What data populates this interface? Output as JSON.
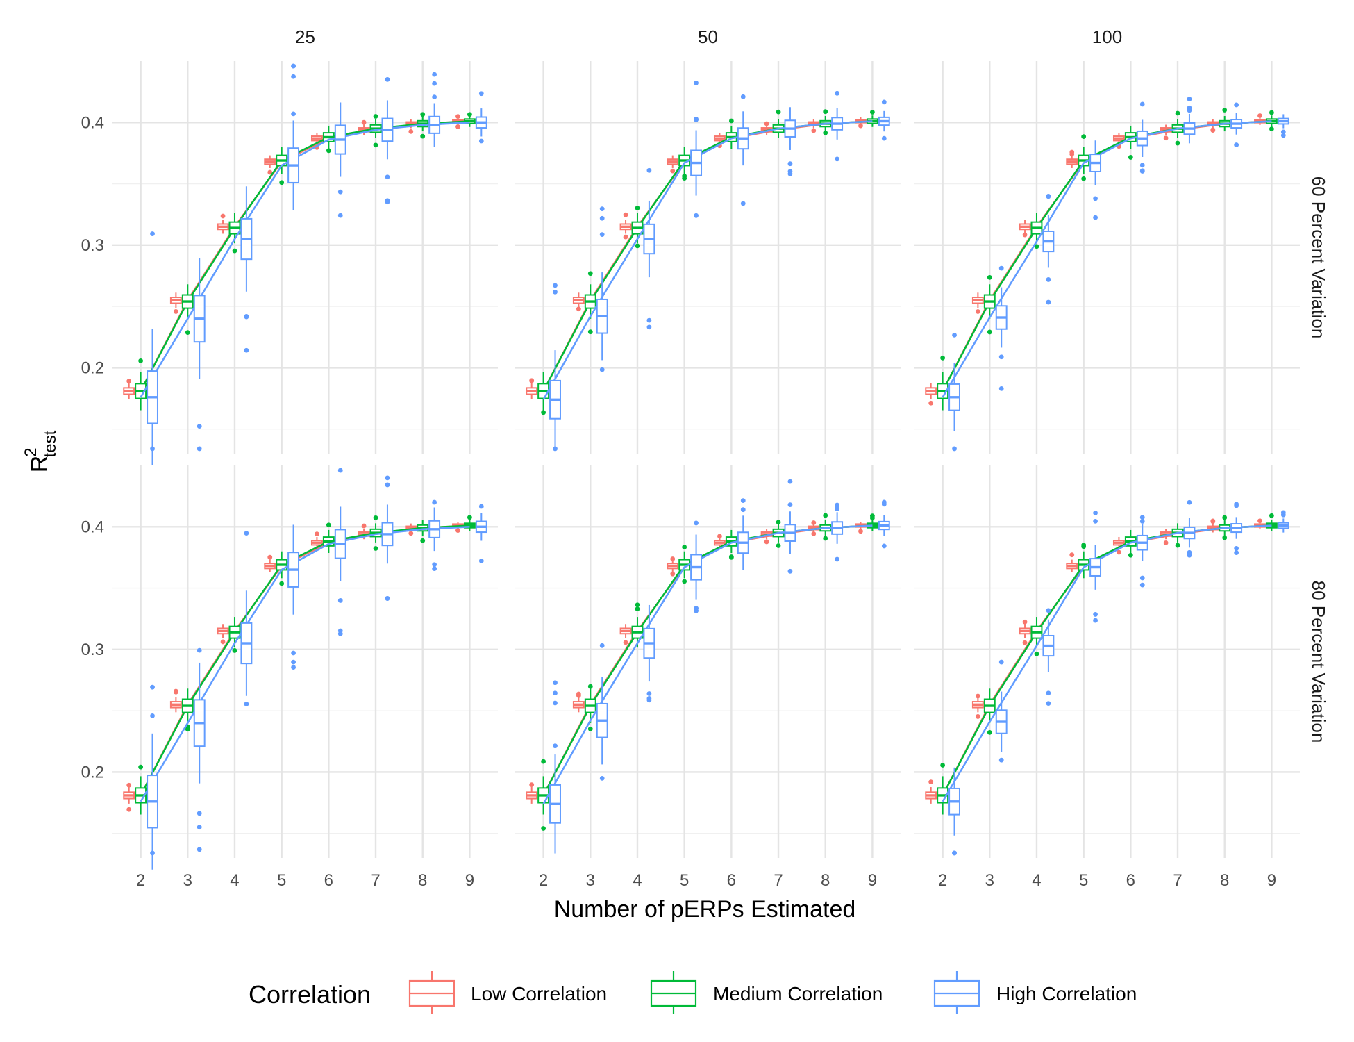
{
  "chart_data": {
    "type": "box",
    "title": "",
    "xlabel": "Number of pERPs Estimated",
    "ylabel_main": "R",
    "ylabel_sup": "2",
    "ylabel_sub": "test",
    "x": [
      2,
      3,
      4,
      5,
      6,
      7,
      8,
      9
    ],
    "x_tick_labels": [
      "2",
      "3",
      "4",
      "5",
      "6",
      "7",
      "8",
      "9"
    ],
    "y_ticks": [
      0.2,
      0.3,
      0.4
    ],
    "y_tick_labels": [
      "0.2",
      "0.3",
      "0.4"
    ],
    "ylim": [
      0.13,
      0.45
    ],
    "grid": true,
    "facet_columns": [
      "25",
      "50",
      "100"
    ],
    "facet_rows": [
      "60 Percent Variation",
      "80 Percent Variation"
    ],
    "legend": {
      "title": "Correlation",
      "position": "bottom",
      "entries": [
        "Low Correlation",
        "Medium Correlation",
        "High Correlation"
      ]
    },
    "series_colors": {
      "Low Correlation": "#F8766D",
      "Medium Correlation": "#00BA38",
      "High Correlation": "#619CFF"
    },
    "series": [
      {
        "name": "Low Correlation",
        "medians": [
          0.181,
          0.255,
          0.315,
          0.368,
          0.387,
          0.394,
          0.399,
          0.401
        ]
      },
      {
        "name": "Medium Correlation",
        "medians": [
          0.181,
          0.254,
          0.314,
          0.369,
          0.388,
          0.395,
          0.399,
          0.401
        ]
      },
      {
        "name": "High Correlation",
        "medians_by_column": [
          [
            0.176,
            0.24,
            0.305,
            0.365,
            0.386,
            0.394,
            0.398,
            0.4
          ],
          [
            0.174,
            0.242,
            0.305,
            0.367,
            0.387,
            0.395,
            0.399,
            0.401
          ],
          [
            0.176,
            0.241,
            0.303,
            0.367,
            0.387,
            0.395,
            0.399,
            0.401
          ]
        ]
      }
    ]
  }
}
